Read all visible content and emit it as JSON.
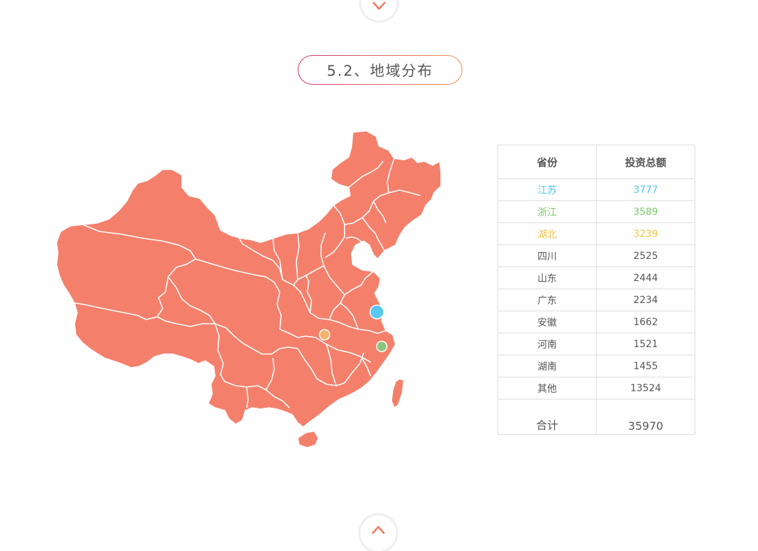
{
  "section": {
    "title": "5.2、地域分布"
  },
  "colors": {
    "map_fill": "#f4806c",
    "highlight_blue": "#50c8ee",
    "highlight_green": "#7ec66a",
    "highlight_yellow": "#f5c444",
    "marker_blue": "#5ac8f5",
    "marker_green": "#8cc57a",
    "marker_orange": "#f5b46a"
  },
  "table": {
    "headers": {
      "province": "省份",
      "amount": "投资总额"
    },
    "rows": [
      {
        "province": "江苏",
        "amount": "3777"
      },
      {
        "province": "浙江",
        "amount": "3589"
      },
      {
        "province": "湖北",
        "amount": "3239"
      },
      {
        "province": "四川",
        "amount": "2525"
      },
      {
        "province": "山东",
        "amount": "2444"
      },
      {
        "province": "广东",
        "amount": "2234"
      },
      {
        "province": "安徽",
        "amount": "1662"
      },
      {
        "province": "河南",
        "amount": "1521"
      },
      {
        "province": "湖南",
        "amount": "1455"
      },
      {
        "province": "其他",
        "amount": "13524"
      }
    ],
    "total": {
      "label": "合计",
      "amount": "35970"
    }
  },
  "icons": {
    "nav_top": "chevron-down-icon",
    "nav_bottom": "chevron-up-icon"
  }
}
